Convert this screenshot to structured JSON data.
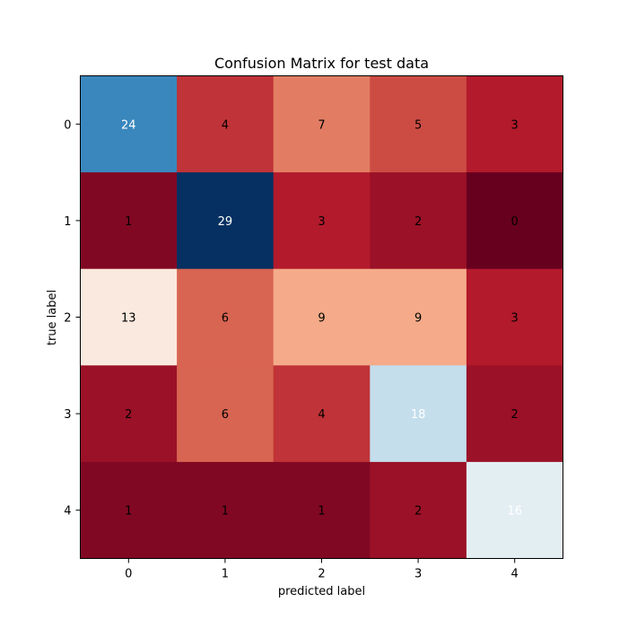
{
  "chart_data": {
    "type": "heatmap",
    "title": "Confusion Matrix for test data",
    "xlabel": "predicted label",
    "ylabel": "true label",
    "x_tick_labels": [
      "0",
      "1",
      "2",
      "3",
      "4"
    ],
    "y_tick_labels": [
      "0",
      "1",
      "2",
      "3",
      "4"
    ],
    "values": [
      [
        24,
        4,
        7,
        5,
        3
      ],
      [
        1,
        29,
        3,
        2,
        0
      ],
      [
        13,
        6,
        9,
        9,
        3
      ],
      [
        2,
        6,
        4,
        18,
        2
      ],
      [
        1,
        1,
        1,
        2,
        16
      ]
    ],
    "colormap": "RdBu",
    "value_range": [
      0,
      29
    ],
    "grid": false
  }
}
